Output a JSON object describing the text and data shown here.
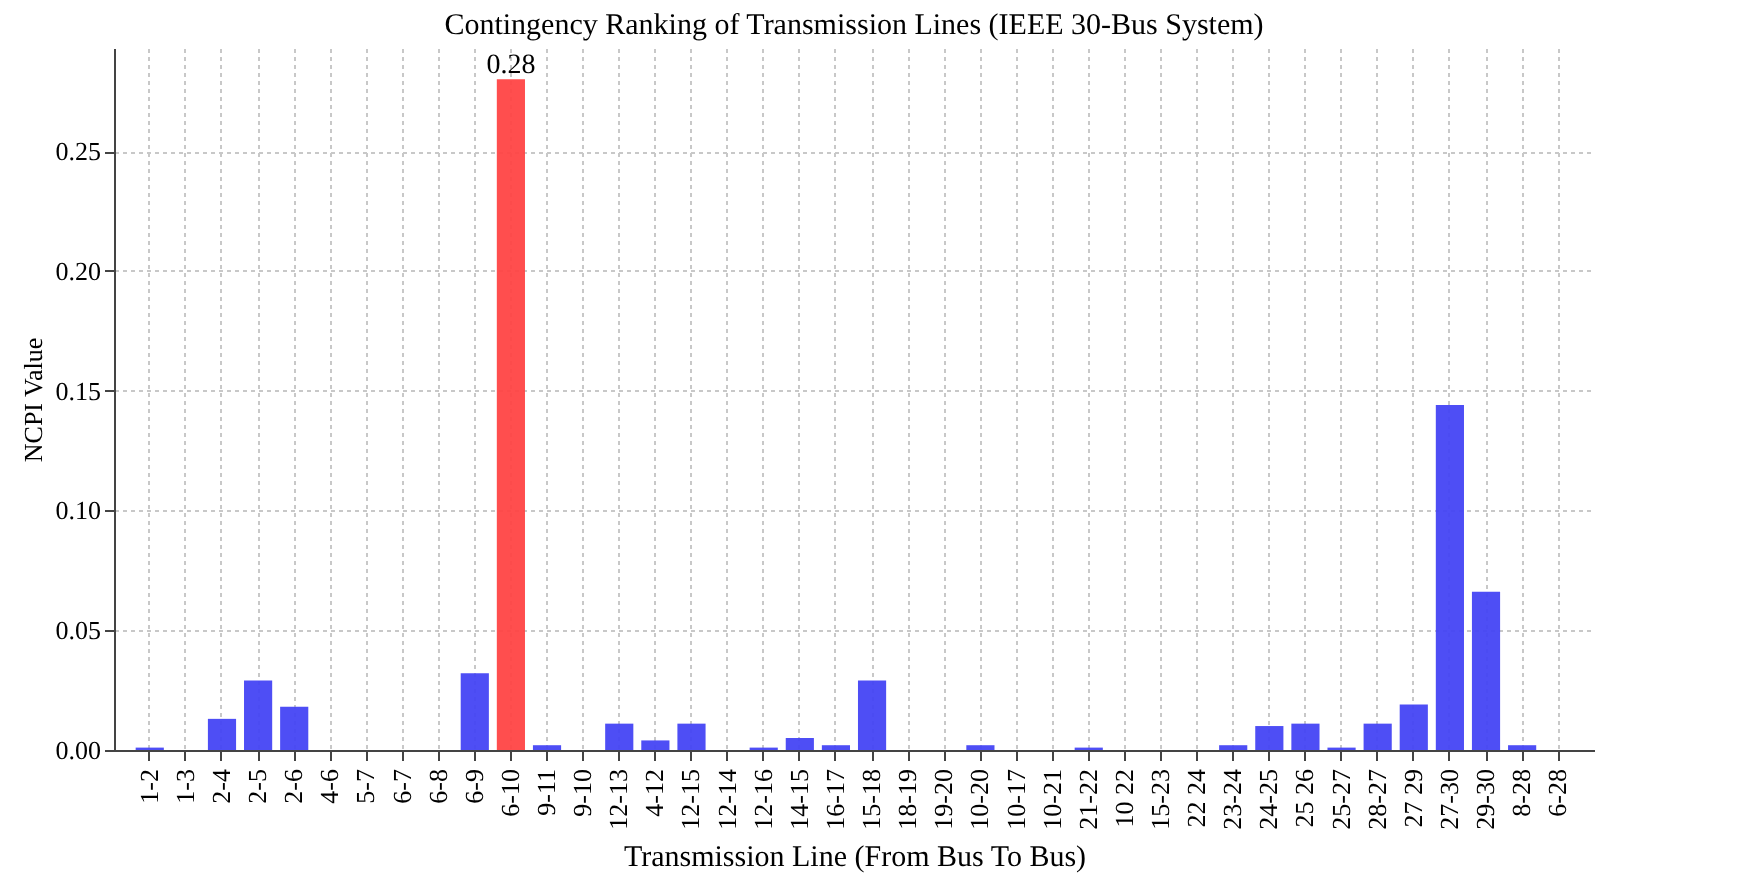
{
  "chart_data": {
    "type": "bar",
    "title": "Contingency Ranking of Transmission Lines (IEEE 30-Bus System)",
    "xlabel": "Transmission Line (From Bus To Bus)",
    "ylabel": "NCPI Value",
    "categories": [
      "1-2",
      "1-3",
      "2-4",
      "2-5",
      "2-6",
      "4-6",
      "5-7",
      "6-7",
      "6-8",
      "6-9",
      "6-10",
      "9-11",
      "9-10",
      "12-13",
      "4-12",
      "12-15",
      "12-14",
      "12-16",
      "14-15",
      "16-17",
      "15-18",
      "18-19",
      "19-20",
      "10-20",
      "10-17",
      "10-21",
      "21-22",
      "10 22",
      "15-23",
      "22 24",
      "23-24",
      "24-25",
      "25 26",
      "25-27",
      "28-27",
      "27 29",
      "27-30",
      "29-30",
      "8-28",
      "6-28"
    ],
    "values": [
      0.001,
      0,
      0.013,
      0.029,
      0.018,
      0,
      0,
      0,
      0,
      0.032,
      0.28,
      0.002,
      0,
      0.011,
      0.004,
      0.011,
      0,
      0.001,
      0.005,
      0.002,
      0.029,
      0,
      0,
      0.002,
      0,
      0,
      0.001,
      0,
      0,
      0,
      0.002,
      0.01,
      0.011,
      0.001,
      0.011,
      0.019,
      0.144,
      0.066,
      0.002,
      0
    ],
    "colors": [
      "#4444f4",
      "#4444f4",
      "#4444f4",
      "#4444f4",
      "#4444f4",
      "#4444f4",
      "#4444f4",
      "#4444f4",
      "#4444f4",
      "#4444f4",
      "#ff4444",
      "#4444f4",
      "#4444f4",
      "#4444f4",
      "#4444f4",
      "#4444f4",
      "#4444f4",
      "#4444f4",
      "#4444f4",
      "#4444f4",
      "#4444f4",
      "#4444f4",
      "#4444f4",
      "#4444f4",
      "#4444f4",
      "#4444f4",
      "#4444f4",
      "#4444f4",
      "#4444f4",
      "#4444f4",
      "#4444f4",
      "#4444f4",
      "#4444f4",
      "#4444f4",
      "#4444f4",
      "#4444f4",
      "#4444f4",
      "#4444f4",
      "#4444f4",
      "#4444f4"
    ],
    "value_labels": [
      null,
      null,
      null,
      null,
      null,
      null,
      null,
      null,
      null,
      null,
      "0.28",
      null,
      null,
      null,
      null,
      null,
      null,
      null,
      null,
      null,
      null,
      null,
      null,
      null,
      null,
      null,
      null,
      null,
      null,
      null,
      null,
      null,
      null,
      null,
      null,
      null,
      null,
      null,
      null,
      null
    ],
    "ylim": [
      0,
      0.293
    ],
    "yticks": [
      {
        "value": 0,
        "label": "0.00"
      },
      {
        "value": 0.05,
        "label": "0.05"
      },
      {
        "value": 0.1,
        "label": "0.10"
      },
      {
        "value": 0.15,
        "label": "0.15"
      },
      {
        "value": 0.2,
        "label": "0.20"
      },
      {
        "value": 0.25,
        "label": "0.25"
      }
    ],
    "grid": true
  }
}
